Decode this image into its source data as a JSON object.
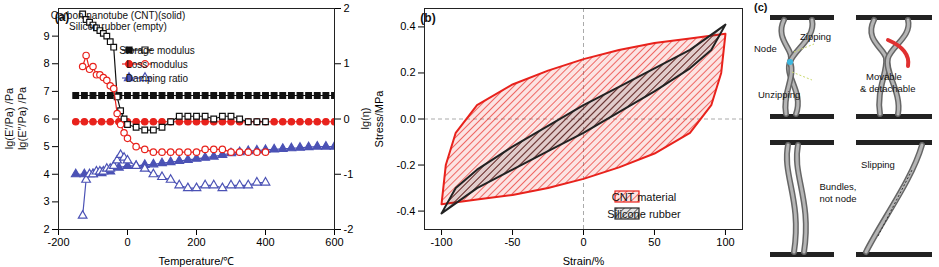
{
  "chart_data": [
    {
      "type": "line",
      "title": "(a)",
      "annotations": [
        "Carbon nanotube (CNT)(solid)",
        "Silicon rubber (empty)"
      ],
      "x_label": "Temperature/℃",
      "y_label": [
        "lg(E′/Pa) /Pa",
        "lg(E″/Pa) /Pa"
      ],
      "y2_label": "lg(η)",
      "xlim": [
        -200,
        600
      ],
      "xticks": [
        -200,
        0,
        200,
        400,
        600
      ],
      "ylim": [
        2,
        10
      ],
      "yticks": [
        2,
        3,
        4,
        5,
        6,
        7,
        8,
        9
      ],
      "y2lim": [
        -2,
        2
      ],
      "y2ticks": [
        -2,
        -1,
        0,
        1,
        2
      ],
      "legend": "top",
      "series": [
        {
          "name": "Storage modulus",
          "color": "#111111",
          "marker": "square",
          "x": [
            -150,
            -125,
            -100,
            -75,
            -50,
            -25,
            0,
            25,
            50,
            75,
            100,
            125,
            150,
            175,
            200,
            225,
            250,
            275,
            300,
            325,
            350,
            375,
            400,
            425,
            450,
            475,
            500,
            525,
            550,
            575,
            600
          ],
          "values": [
            6.85,
            6.85,
            6.85,
            6.85,
            6.85,
            6.85,
            6.85,
            6.85,
            6.85,
            6.85,
            6.85,
            6.85,
            6.85,
            6.85,
            6.85,
            6.85,
            6.85,
            6.85,
            6.85,
            6.85,
            6.85,
            6.85,
            6.85,
            6.85,
            6.85,
            6.85,
            6.85,
            6.85,
            6.85,
            6.85,
            6.85
          ]
        },
        {
          "name": "Loss modulus",
          "color": "#e8221c",
          "marker": "circle",
          "x": [
            -150,
            -125,
            -100,
            -75,
            -50,
            -25,
            0,
            25,
            50,
            75,
            100,
            125,
            150,
            175,
            200,
            225,
            250,
            275,
            300,
            325,
            350,
            375,
            400,
            425,
            450,
            475,
            500,
            525,
            550,
            575,
            600
          ],
          "values": [
            5.9,
            5.9,
            5.9,
            5.9,
            5.9,
            5.9,
            5.9,
            5.9,
            5.9,
            5.9,
            5.9,
            5.9,
            5.9,
            5.9,
            5.9,
            5.9,
            5.9,
            5.9,
            5.9,
            5.9,
            5.9,
            5.9,
            5.9,
            5.9,
            5.9,
            5.9,
            5.9,
            5.9,
            5.9,
            5.9,
            5.9
          ]
        },
        {
          "name": "Damping ratio",
          "color": "#4b52b5",
          "marker": "triangle",
          "axis": "y2",
          "x": [
            -150,
            -125,
            -100,
            -75,
            -50,
            -25,
            0,
            25,
            50,
            75,
            100,
            125,
            150,
            175,
            200,
            225,
            250,
            275,
            300,
            325,
            350,
            375,
            400,
            425,
            450,
            475,
            500,
            525,
            550,
            575,
            600
          ],
          "values": [
            -1.0,
            -1.0,
            -1.0,
            -0.98,
            -0.95,
            -0.88,
            -0.85,
            -0.85,
            -0.83,
            -0.82,
            -0.8,
            -0.78,
            -0.76,
            -0.74,
            -0.72,
            -0.7,
            -0.68,
            -0.65,
            -0.62,
            -0.6,
            -0.58,
            -0.57,
            -0.56,
            -0.55,
            -0.54,
            -0.53,
            -0.52,
            -0.51,
            -0.5,
            -0.5,
            -0.5
          ]
        },
        {
          "name": "Storage modulus",
          "color": "#111111",
          "marker": "square-open",
          "x": [
            -130,
            -120,
            -110,
            -100,
            -90,
            -80,
            -70,
            -60,
            -50,
            -40,
            -30,
            -20,
            -10,
            0,
            25,
            50,
            75,
            100,
            125,
            150,
            175,
            200,
            225,
            250,
            275,
            300,
            325,
            350,
            375,
            400
          ],
          "values": [
            9.8,
            9.6,
            9.5,
            9.4,
            9.3,
            9.2,
            9.1,
            9.0,
            8.8,
            8.6,
            6.8,
            6.3,
            6.0,
            5.8,
            5.7,
            5.6,
            5.6,
            5.7,
            5.9,
            6.1,
            6.1,
            6.1,
            6.1,
            6.0,
            6.1,
            6.1,
            6.0,
            5.9,
            5.9,
            5.9
          ]
        },
        {
          "name": "Loss modulus",
          "color": "#e8221c",
          "marker": "circle-open",
          "x": [
            -130,
            -120,
            -110,
            -100,
            -90,
            -80,
            -70,
            -60,
            -50,
            -40,
            -30,
            -20,
            -10,
            0,
            25,
            50,
            75,
            100,
            125,
            150,
            175,
            200,
            225,
            250,
            275,
            300,
            325,
            350,
            375,
            400
          ],
          "values": [
            7.9,
            8.3,
            7.8,
            7.9,
            7.6,
            7.6,
            7.5,
            7.4,
            7.2,
            7.1,
            6.2,
            5.8,
            5.5,
            5.3,
            5.0,
            4.9,
            4.8,
            4.8,
            4.8,
            4.8,
            4.8,
            4.8,
            4.9,
            4.9,
            4.9,
            4.8,
            4.8,
            4.8,
            4.8,
            4.8
          ]
        },
        {
          "name": "Damping ratio",
          "color": "#4b52b5",
          "marker": "triangle-open",
          "axis": "y2",
          "x": [
            -130,
            -120,
            -110,
            -100,
            -90,
            -80,
            -70,
            -60,
            -50,
            -40,
            -30,
            -20,
            -10,
            0,
            25,
            50,
            75,
            100,
            125,
            150,
            175,
            200,
            225,
            250,
            275,
            300,
            325,
            350,
            375,
            400
          ],
          "values": [
            -1.75,
            -1.1,
            -1.0,
            -1.0,
            -0.95,
            -0.95,
            -0.95,
            -0.9,
            -0.9,
            -0.85,
            -0.75,
            -0.65,
            -0.7,
            -0.75,
            -0.85,
            -0.9,
            -1.0,
            -1.05,
            -1.1,
            -1.2,
            -1.25,
            -1.25,
            -1.2,
            -1.2,
            -1.25,
            -1.2,
            -1.2,
            -1.2,
            -1.15,
            -1.15
          ]
        }
      ]
    },
    {
      "type": "line",
      "title": "(b)",
      "x_label": "Strain/%",
      "y_label": "Stress/MPa",
      "xlim": [
        -112,
        112
      ],
      "xticks": [
        -100,
        -50,
        0,
        50,
        100
      ],
      "ylim": [
        -0.48,
        0.48
      ],
      "yticks": [
        -0.4,
        -0.2,
        {
          "value": 0,
          "label": "0.0"
        },
        0.2,
        0.4
      ],
      "legend": "bottom-right",
      "series": [
        {
          "name": "CNT material",
          "color": "#e8221c",
          "x": [
            -100,
            -97,
            -90,
            -75,
            -50,
            -25,
            0,
            25,
            50,
            75,
            100,
            97,
            90,
            75,
            50,
            25,
            0,
            -25,
            -50,
            -75,
            -100
          ],
          "values": [
            -0.37,
            -0.2,
            -0.06,
            0.06,
            0.15,
            0.21,
            0.26,
            0.3,
            0.33,
            0.35,
            0.37,
            0.2,
            0.06,
            -0.06,
            -0.15,
            -0.21,
            -0.26,
            -0.3,
            -0.33,
            -0.35,
            -0.37
          ]
        },
        {
          "name": "Silicone rubber",
          "color": "#222222",
          "x": [
            -100,
            -90,
            -75,
            -50,
            -25,
            0,
            25,
            50,
            75,
            100,
            90,
            75,
            50,
            25,
            0,
            -25,
            -50,
            -75,
            -100
          ],
          "values": [
            -0.41,
            -0.3,
            -0.22,
            -0.12,
            -0.03,
            0.06,
            0.14,
            0.22,
            0.3,
            0.41,
            0.3,
            0.22,
            0.12,
            0.03,
            -0.06,
            -0.14,
            -0.22,
            -0.3,
            -0.41
          ]
        }
      ]
    },
    {
      "type": "diagram",
      "title": "(c)",
      "annotations": [
        "Node",
        "Zipping",
        "Unzipping",
        "Movable",
        "& detachable",
        "Bundles,",
        "not node",
        "Slipping"
      ]
    }
  ]
}
